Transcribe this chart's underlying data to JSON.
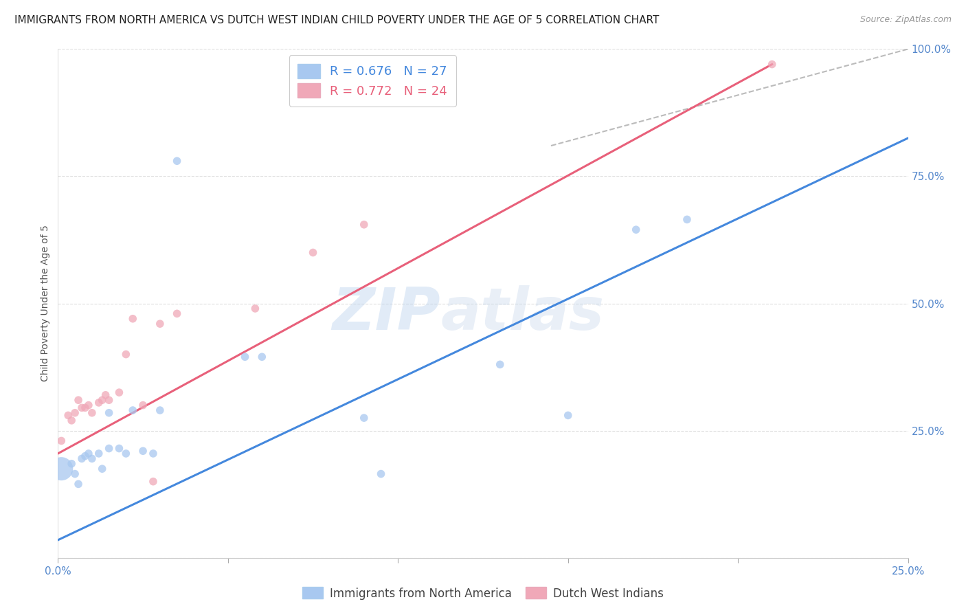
{
  "title": "IMMIGRANTS FROM NORTH AMERICA VS DUTCH WEST INDIAN CHILD POVERTY UNDER THE AGE OF 5 CORRELATION CHART",
  "source": "Source: ZipAtlas.com",
  "ylabel": "Child Poverty Under the Age of 5",
  "xlim": [
    0,
    0.25
  ],
  "ylim": [
    0,
    1.0
  ],
  "blue_R": 0.676,
  "blue_N": 27,
  "pink_R": 0.772,
  "pink_N": 24,
  "blue_color": "#A8C8F0",
  "pink_color": "#F0A8B8",
  "blue_line_color": "#4488DD",
  "pink_line_color": "#E8607A",
  "blue_scatter_x": [
    0.001,
    0.004,
    0.005,
    0.006,
    0.007,
    0.008,
    0.009,
    0.01,
    0.012,
    0.013,
    0.015,
    0.015,
    0.018,
    0.02,
    0.022,
    0.025,
    0.028,
    0.03,
    0.035,
    0.055,
    0.06,
    0.09,
    0.095,
    0.13,
    0.15,
    0.17,
    0.185
  ],
  "blue_scatter_y": [
    0.175,
    0.185,
    0.165,
    0.145,
    0.195,
    0.2,
    0.205,
    0.195,
    0.205,
    0.175,
    0.215,
    0.285,
    0.215,
    0.205,
    0.29,
    0.21,
    0.205,
    0.29,
    0.78,
    0.395,
    0.395,
    0.275,
    0.165,
    0.38,
    0.28,
    0.645,
    0.665
  ],
  "blue_scatter_size": [
    600,
    70,
    70,
    70,
    70,
    70,
    70,
    70,
    70,
    70,
    70,
    70,
    70,
    70,
    70,
    70,
    70,
    70,
    70,
    70,
    70,
    70,
    70,
    70,
    70,
    70,
    70
  ],
  "pink_scatter_x": [
    0.001,
    0.003,
    0.004,
    0.005,
    0.006,
    0.007,
    0.008,
    0.009,
    0.01,
    0.012,
    0.013,
    0.014,
    0.015,
    0.018,
    0.02,
    0.022,
    0.025,
    0.028,
    0.03,
    0.035,
    0.058,
    0.075,
    0.09,
    0.21
  ],
  "pink_scatter_y": [
    0.23,
    0.28,
    0.27,
    0.285,
    0.31,
    0.295,
    0.295,
    0.3,
    0.285,
    0.305,
    0.31,
    0.32,
    0.31,
    0.325,
    0.4,
    0.47,
    0.3,
    0.15,
    0.46,
    0.48,
    0.49,
    0.6,
    0.655,
    0.97
  ],
  "pink_scatter_size": [
    70,
    70,
    70,
    70,
    70,
    70,
    70,
    70,
    70,
    70,
    70,
    70,
    70,
    70,
    70,
    70,
    70,
    70,
    70,
    70,
    70,
    70,
    70,
    70
  ],
  "blue_line_x": [
    0.0,
    0.25
  ],
  "blue_line_y": [
    0.035,
    0.825
  ],
  "pink_line_x": [
    0.0,
    0.21
  ],
  "pink_line_y": [
    0.205,
    0.97
  ],
  "diag_line_x": [
    0.145,
    0.25
  ],
  "diag_line_y": [
    0.81,
    1.0
  ],
  "watermark_zip": "ZIP",
  "watermark_atlas": "atlas",
  "legend_blue_label_r": "R = 0.676",
  "legend_blue_label_n": "N = 27",
  "legend_pink_label_r": "R = 0.772",
  "legend_pink_label_n": "N = 24",
  "footer_blue_label": "Immigrants from North America",
  "footer_pink_label": "Dutch West Indians",
  "background_color": "#FFFFFF",
  "grid_color": "#DDDDDD",
  "tick_color": "#5588CC",
  "ylabel_color": "#555555",
  "title_color": "#222222"
}
